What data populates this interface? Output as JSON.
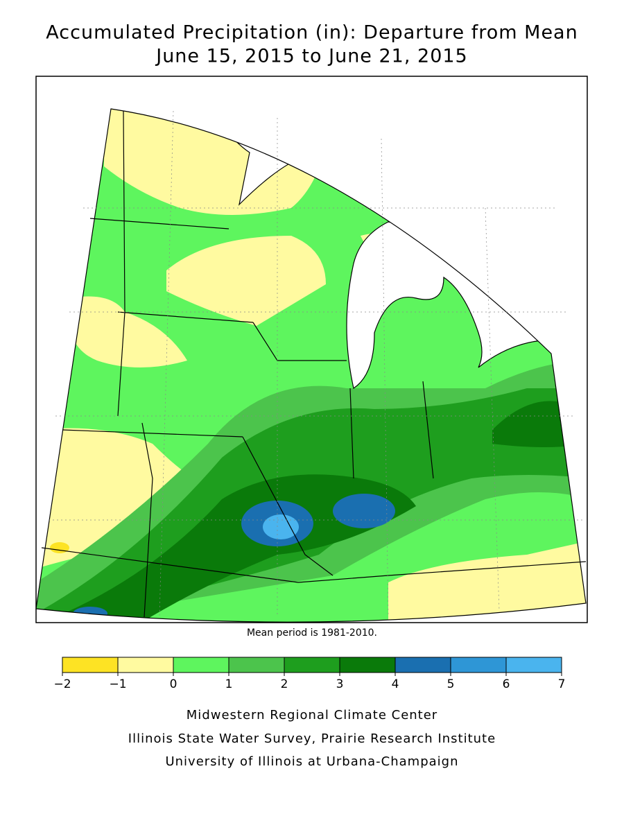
{
  "title": [
    "Accumulated Precipitation (in): Departure from Mean",
    "June 15, 2015 to June 21, 2015"
  ],
  "note": "Mean period is 1981-2010.",
  "legend": {
    "ticks": [
      {
        "value": -2,
        "label": "−2"
      },
      {
        "value": -1,
        "label": "−1"
      },
      0,
      1,
      2,
      3,
      4,
      5,
      6,
      7
    ],
    "colors": [
      "#fde324",
      "#fffaa0",
      "#5ef55e",
      "#4cc44c",
      "#1e9e1e",
      "#0a7a0a",
      "#1a6fb0",
      "#2e96d6",
      "#4ab4ee"
    ]
  },
  "credits": [
    "Midwestern Regional Climate Center",
    "Illinois State Water Survey, Prairie Research Institute",
    "University of Illinois at Urbana-Champaign"
  ]
}
